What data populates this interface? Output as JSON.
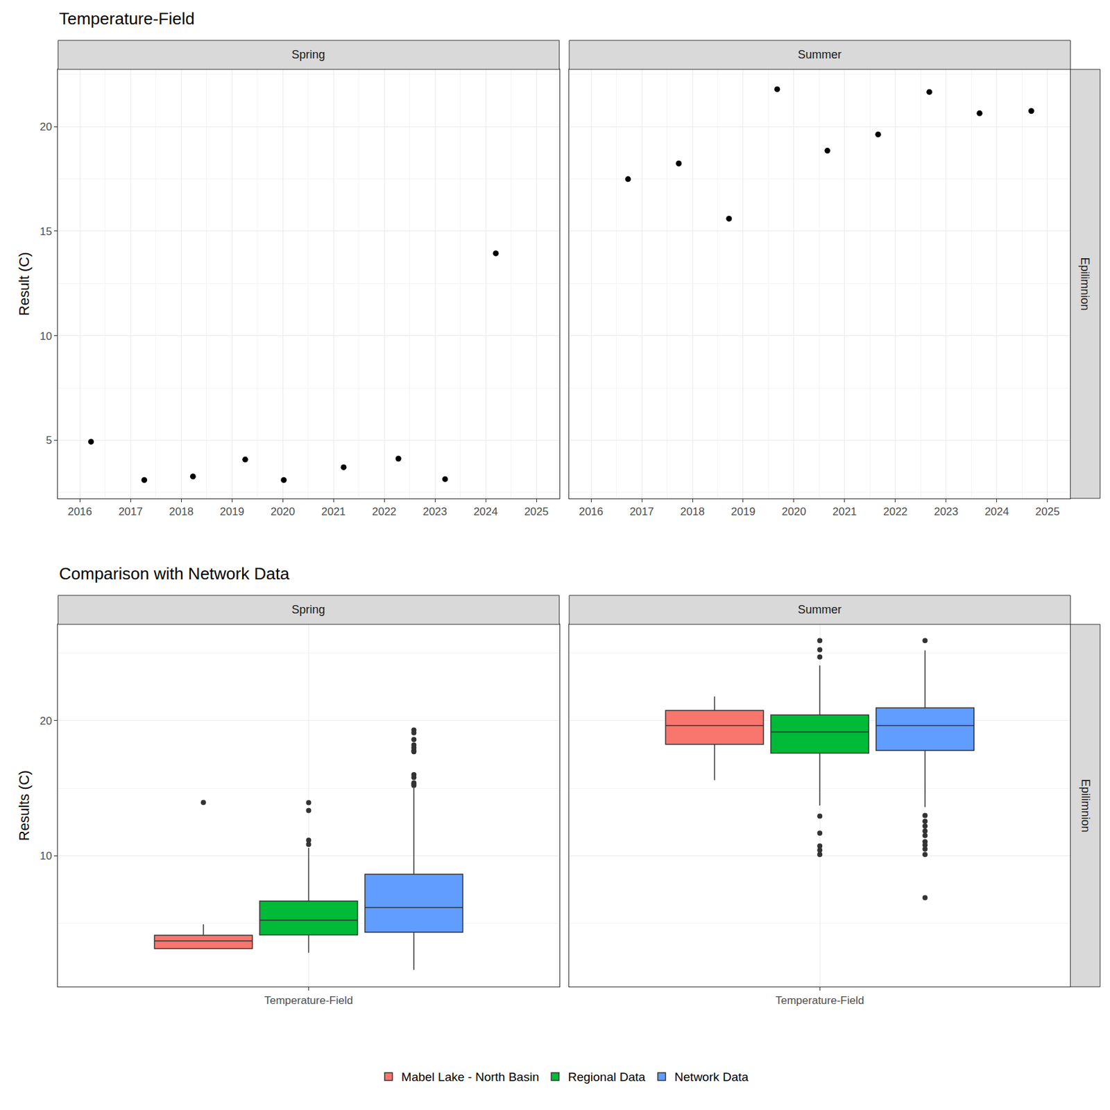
{
  "chart_data": [
    {
      "type": "scatter",
      "title": "Temperature-Field",
      "y_label": "Result (C)",
      "row_label": "Epilimnion",
      "color": "#000000",
      "marker": "circle",
      "grid": true,
      "xlim": [
        2015.57,
        2025.45
      ],
      "xticks": [
        2016,
        2017,
        2018,
        2019,
        2020,
        2021,
        2022,
        2023,
        2024,
        2025
      ],
      "ylim": [
        2.22,
        22.74
      ],
      "yticks": [
        5,
        10,
        15,
        20
      ],
      "panels": [
        {
          "name": "Spring",
          "x": [
            2016.22,
            2017.27,
            2018.23,
            2019.26,
            2020.02,
            2021.2,
            2022.28,
            2023.2,
            2024.2
          ],
          "values": [
            4.93,
            3.1,
            3.27,
            4.08,
            3.1,
            3.71,
            4.12,
            3.14,
            13.94
          ]
        },
        {
          "name": "Summer",
          "x": [
            2016.73,
            2017.73,
            2018.72,
            2019.67,
            2020.66,
            2021.66,
            2022.67,
            2023.66,
            2024.68
          ],
          "values": [
            17.49,
            18.24,
            15.6,
            21.79,
            18.85,
            19.63,
            21.66,
            20.64,
            20.75
          ]
        }
      ]
    },
    {
      "type": "box",
      "title": "Comparison with Network Data",
      "y_label": "Results (C)",
      "row_label": "Epilimnion",
      "categories": [
        "Temperature-Field"
      ],
      "legend": "bottom",
      "grid": true,
      "ylim": [
        0.31,
        27.12
      ],
      "yticks": [
        10,
        20
      ],
      "panels": [
        {
          "name": "Spring",
          "series": [
            {
              "name": "Mabel Lake - North Basin",
              "color": "#F8766D",
              "q1": 3.14,
              "median": 3.71,
              "q3": 4.12,
              "lowerfence": 3.1,
              "upperfence": 4.93,
              "outliers": [
                13.94
              ]
            },
            {
              "name": "Regional Data",
              "color": "#00BA38",
              "q1": 4.14,
              "median": 5.24,
              "q3": 6.65,
              "lowerfence": 2.83,
              "upperfence": 10.58,
              "outliers": [
                13.93,
                13.35,
                11.15,
                10.84
              ]
            },
            {
              "name": "Network Data",
              "color": "#619CFF",
              "q1": 4.35,
              "median": 6.18,
              "q3": 8.64,
              "lowerfence": 1.57,
              "upperfence": 15.0,
              "outliers": [
                19.3,
                19.1,
                18.6,
                18.2,
                18.0,
                17.8,
                17.7,
                16.0,
                15.8,
                15.4,
                15.3,
                15.2
              ]
            }
          ]
        },
        {
          "name": "Summer",
          "series": [
            {
              "name": "Mabel Lake - North Basin",
              "color": "#F8766D",
              "q1": 18.24,
              "median": 19.63,
              "q3": 20.75,
              "lowerfence": 15.6,
              "upperfence": 21.79,
              "outliers": []
            },
            {
              "name": "Regional Data",
              "color": "#00BA38",
              "q1": 17.59,
              "median": 19.16,
              "q3": 20.42,
              "lowerfence": 13.72,
              "upperfence": 24.08,
              "outliers": [
                25.92,
                25.24,
                24.71,
                12.93,
                11.68,
                10.73,
                10.42,
                10.1
              ]
            },
            {
              "name": "Network Data",
              "color": "#619CFF",
              "q1": 17.8,
              "median": 19.63,
              "q3": 20.94,
              "lowerfence": 13.6,
              "upperfence": 25.2,
              "outliers": [
                25.92,
                12.98,
                12.56,
                12.2,
                11.83,
                11.5,
                11.05,
                10.8,
                10.5,
                10.1,
                6.9
              ]
            }
          ]
        }
      ]
    }
  ]
}
